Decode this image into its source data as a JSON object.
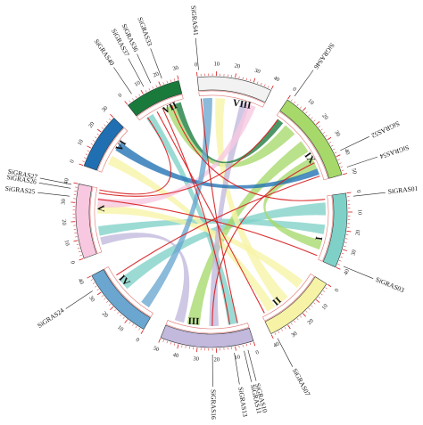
{
  "chromosomes": [
    {
      "id": "I",
      "label": "I",
      "length": 40,
      "ring_color": "#7fd1c8",
      "track_color": "#d9534f",
      "tick_labels": [
        "0",
        "10",
        "20",
        "30",
        "40"
      ]
    },
    {
      "id": "II",
      "label": "II",
      "length": 40,
      "ring_color": "#f7f3a6",
      "track_color": "#d9534f",
      "tick_labels": [
        "0",
        "10",
        "20",
        "30",
        "40"
      ]
    },
    {
      "id": "III",
      "label": "III",
      "length": 50,
      "ring_color": "#c2b9dd",
      "track_color": "#d9534f",
      "tick_labels": [
        "0",
        "10",
        "20",
        "30",
        "40",
        "50"
      ]
    },
    {
      "id": "IV",
      "label": "IV",
      "length": 40,
      "ring_color": "#6aa6cf",
      "track_color": "#d9534f",
      "tick_labels": [
        "0",
        "10",
        "20",
        "30",
        "40"
      ]
    },
    {
      "id": "V",
      "label": "V",
      "length": 40,
      "ring_color": "#f7c8e0",
      "track_color": "#d9534f",
      "tick_labels": [
        "0",
        "10",
        "20",
        "30",
        "40"
      ]
    },
    {
      "id": "VI",
      "label": "VI",
      "length": 30,
      "ring_color": "#1f6fb2",
      "track_color": "#d9534f",
      "tick_labels": [
        "0",
        "10",
        "20",
        "30"
      ]
    },
    {
      "id": "VII",
      "label": "VII",
      "length": 30,
      "ring_color": "#1a7a3c",
      "track_color": "#d9534f",
      "tick_labels": [
        "0",
        "10",
        "20",
        "30"
      ]
    },
    {
      "id": "VIII",
      "label": "VIII",
      "length": 40,
      "ring_color": "#f2f2f2",
      "track_color": "#d9534f",
      "tick_labels": [
        "0",
        "10",
        "20",
        "30",
        "40"
      ]
    },
    {
      "id": "IX",
      "label": "IX",
      "length": 50,
      "ring_color": "#a6d96a",
      "track_color": "#d9534f",
      "tick_labels": [
        "0",
        "10",
        "20",
        "30",
        "40",
        "50"
      ]
    }
  ],
  "genes": [
    {
      "name": "SiGRAS01",
      "chr": "I",
      "pos": 2
    },
    {
      "name": "SiGRAS03",
      "chr": "I",
      "pos": 38
    },
    {
      "name": "SiGRAS07",
      "chr": "II",
      "pos": 38
    },
    {
      "name": "SiGRAS10",
      "chr": "III",
      "pos": 4
    },
    {
      "name": "SiGRAS11",
      "chr": "III",
      "pos": 6
    },
    {
      "name": "SiGRAS13",
      "chr": "III",
      "pos": 11
    },
    {
      "name": "SiGRAS16",
      "chr": "III",
      "pos": 22
    },
    {
      "name": "SiGRAS24",
      "chr": "IV",
      "pos": 33
    },
    {
      "name": "SiGRAS25",
      "chr": "V",
      "pos": 33
    },
    {
      "name": "SiGRAS26",
      "chr": "V",
      "pos": 37
    },
    {
      "name": "SiGRAS27",
      "chr": "V",
      "pos": 39
    },
    {
      "name": "SiGRAS33",
      "chr": "VII",
      "pos": 22
    },
    {
      "name": "SiGRAS36",
      "chr": "VII",
      "pos": 16
    },
    {
      "name": "SiGRAS37",
      "chr": "VII",
      "pos": 12
    },
    {
      "name": "SiGRAS40",
      "chr": "VII",
      "pos": 5
    },
    {
      "name": "SiGRAS41",
      "chr": "VIII",
      "pos": 1
    },
    {
      "name": "SiGRAS46",
      "chr": "IX",
      "pos": 2
    },
    {
      "name": "SiGRAS52",
      "chr": "IX",
      "pos": 38
    },
    {
      "name": "SiGRAS54",
      "chr": "IX",
      "pos": 47
    }
  ],
  "ribbons": [
    {
      "a": [
        "VII",
        4,
        9
      ],
      "b": [
        "III",
        6,
        12
      ],
      "color": "#7fd1c8"
    },
    {
      "a": [
        "I",
        4,
        12
      ],
      "b": [
        "IV",
        22,
        30
      ],
      "color": "#7fd1c8"
    },
    {
      "a": [
        "I",
        18,
        24
      ],
      "b": [
        "V",
        10,
        16
      ],
      "color": "#7fd1c8"
    },
    {
      "a": [
        "IX",
        22,
        30
      ],
      "b": [
        "III",
        30,
        38
      ],
      "color": "#a6d96a"
    },
    {
      "a": [
        "IX",
        8,
        16
      ],
      "b": [
        "VII",
        18,
        24
      ],
      "color": "#a6d96a"
    },
    {
      "a": [
        "IX",
        34,
        42
      ],
      "b": [
        "I",
        28,
        34
      ],
      "color": "#a6d96a"
    },
    {
      "a": [
        "VIII",
        10,
        16
      ],
      "b": [
        "II",
        20,
        28
      ],
      "color": "#f7f3a6"
    },
    {
      "a": [
        "II",
        6,
        12
      ],
      "b": [
        "V",
        24,
        30
      ],
      "color": "#f7f3a6"
    },
    {
      "a": [
        "II",
        30,
        36
      ],
      "b": [
        "VI",
        6,
        12
      ],
      "color": "#f7f3a6"
    },
    {
      "a": [
        "III",
        40,
        46
      ],
      "b": [
        "V",
        4,
        9
      ],
      "color": "#c2b9dd"
    },
    {
      "a": [
        "III",
        18,
        24
      ],
      "b": [
        "VIII",
        26,
        32
      ],
      "color": "#c2b9dd"
    },
    {
      "a": [
        "V",
        28,
        34
      ],
      "b": [
        "VIII",
        30,
        36
      ],
      "color": "#f7c8e0"
    },
    {
      "a": [
        "VI",
        16,
        22
      ],
      "b": [
        "IX",
        42,
        46
      ],
      "color": "#1f6fb2"
    },
    {
      "a": [
        "VII",
        24,
        28
      ],
      "b": [
        "IX",
        2,
        6
      ],
      "color": "#1a7a3c"
    },
    {
      "a": [
        "IV",
        4,
        10
      ],
      "b": [
        "VIII",
        2,
        8
      ],
      "color": "#6aa6cf"
    }
  ],
  "links": [
    {
      "a": [
        "VII",
        22,
        22
      ],
      "b": [
        "I",
        2,
        2
      ],
      "color": "#d7191c"
    },
    {
      "a": [
        "IX",
        38,
        38
      ],
      "b": [
        "III",
        22,
        22
      ],
      "color": "#d7191c"
    },
    {
      "a": [
        "V",
        33,
        33
      ],
      "b": [
        "I",
        38,
        38
      ],
      "color": "#d7191c"
    },
    {
      "a": [
        "IV",
        33,
        33
      ],
      "b": [
        "IX",
        47,
        47
      ],
      "color": "#d7191c"
    },
    {
      "a": [
        "VII",
        12,
        12
      ],
      "b": [
        "II",
        38,
        38
      ],
      "color": "#d7191c"
    },
    {
      "a": [
        "VIII",
        1,
        1
      ],
      "b": [
        "III",
        6,
        6
      ],
      "color": "#d7191c"
    },
    {
      "a": [
        "V",
        37,
        37
      ],
      "b": [
        "IX",
        2,
        2
      ],
      "color": "#d7191c"
    },
    {
      "a": [
        "VII",
        16,
        16
      ],
      "b": [
        "III",
        11,
        11
      ],
      "color": "#d7191c"
    },
    {
      "a": [
        "VII",
        5,
        5
      ],
      "b": [
        "V",
        39,
        39
      ],
      "color": "#d7191c"
    }
  ]
}
